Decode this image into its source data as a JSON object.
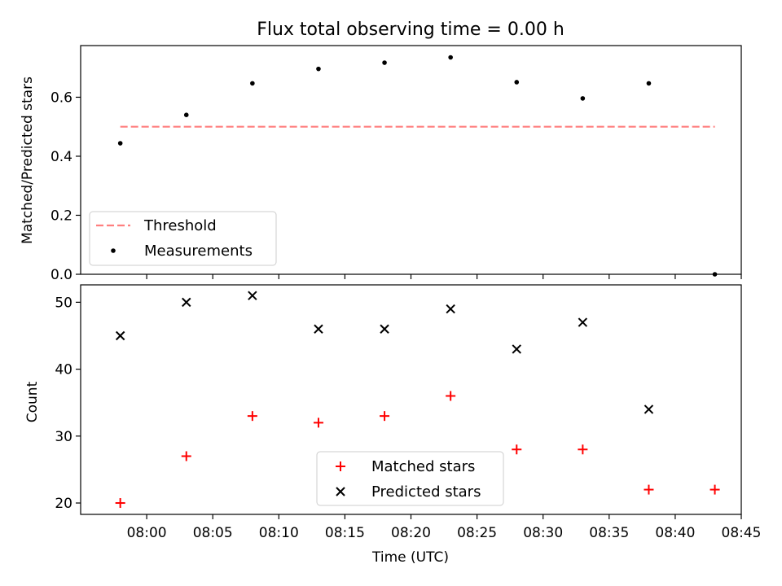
{
  "chart_data": [
    {
      "type": "scatter",
      "title": "Flux total observing time = 0.00 h",
      "xlabel": "",
      "ylabel": "Matched/Predicted stars",
      "ylim": [
        0,
        0.775
      ],
      "yticks": [
        0.0,
        0.2,
        0.4,
        0.6
      ],
      "ytick_labels": [
        "0.0",
        "0.2",
        "0.4",
        "0.6"
      ],
      "legend_placement": "lower-left",
      "threshold": {
        "name": "Threshold",
        "value": 0.5,
        "x_start": "07:58",
        "x_end": "08:43",
        "color": "#ff7f7f"
      },
      "series": [
        {
          "name": "Measurements",
          "color": "#000000",
          "x": [
            "07:58",
            "08:03",
            "08:08",
            "08:13",
            "08:18",
            "08:23",
            "08:28",
            "08:33",
            "08:38",
            "08:43"
          ],
          "values": [
            0.444,
            0.54,
            0.647,
            0.696,
            0.717,
            0.735,
            0.651,
            0.596,
            0.647,
            0.0
          ]
        }
      ]
    },
    {
      "type": "scatter",
      "title": "",
      "xlabel": "Time (UTC)",
      "ylabel": "Count",
      "ylim": [
        18.3,
        52.6
      ],
      "yticks": [
        20,
        30,
        40,
        50
      ],
      "ytick_labels": [
        "20",
        "30",
        "40",
        "50"
      ],
      "xlim": [
        "07:55",
        "08:45"
      ],
      "xticks": [
        "08:00",
        "08:05",
        "08:10",
        "08:15",
        "08:20",
        "08:25",
        "08:30",
        "08:35",
        "08:40",
        "08:45"
      ],
      "legend_placement": "lower-center",
      "series": [
        {
          "name": "Matched stars",
          "marker": "plus",
          "color": "#ff0000",
          "x": [
            "07:58",
            "08:03",
            "08:08",
            "08:13",
            "08:18",
            "08:23",
            "08:28",
            "08:33",
            "08:38",
            "08:43"
          ],
          "values": [
            20,
            27,
            33,
            32,
            33,
            36,
            28,
            28,
            22,
            22
          ]
        },
        {
          "name": "Predicted stars",
          "marker": "x",
          "color": "#000000",
          "x": [
            "07:58",
            "08:03",
            "08:08",
            "08:13",
            "08:18",
            "08:23",
            "08:28",
            "08:33",
            "08:38"
          ],
          "values": [
            45,
            50,
            51,
            46,
            46,
            49,
            43,
            47,
            34
          ]
        }
      ]
    }
  ]
}
